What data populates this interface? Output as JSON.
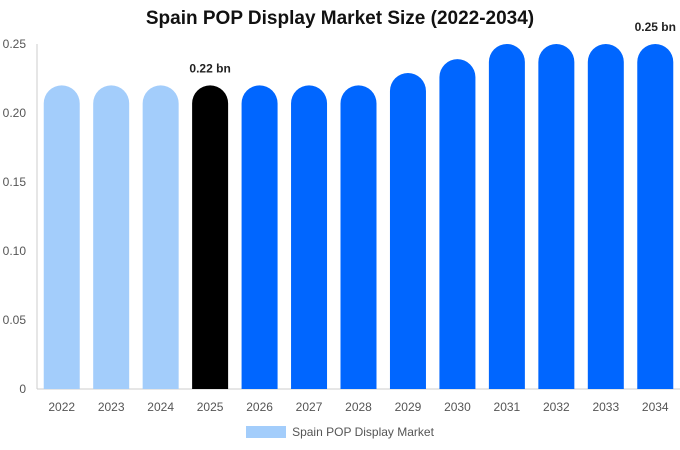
{
  "chart_data": {
    "type": "bar",
    "title": "Spain POP Display Market Size (2022-2034)",
    "categories": [
      "2022",
      "2023",
      "2024",
      "2025",
      "2026",
      "2027",
      "2028",
      "2029",
      "2030",
      "2031",
      "2032",
      "2033",
      "2034"
    ],
    "series": [
      {
        "name": "Spain POP Display Market",
        "values": [
          0.22,
          0.22,
          0.22,
          0.22,
          0.22,
          0.22,
          0.22,
          0.229,
          0.239,
          0.25,
          0.25,
          0.25,
          0.25
        ]
      }
    ],
    "ylim": [
      0,
      0.25
    ],
    "yticks": [
      "0",
      "0.05",
      "0.10",
      "0.15",
      "0.20",
      "0.25"
    ],
    "ytick_values": [
      0,
      0.05,
      0.1,
      0.15,
      0.2,
      0.25
    ],
    "data_labels": [
      {
        "index": 3,
        "text": "0.22 bn"
      },
      {
        "index": 12,
        "text": "0.25 bn"
      }
    ],
    "colors": {
      "historical": "#a3cdfb",
      "current": "#000000",
      "forecast": "#0066ff",
      "axis": "#cccccc"
    },
    "bar_roles": [
      "historical",
      "historical",
      "historical",
      "current",
      "forecast",
      "forecast",
      "forecast",
      "forecast",
      "forecast",
      "forecast",
      "forecast",
      "forecast",
      "forecast"
    ],
    "legend_placement": "bottom-center",
    "grid": false
  }
}
